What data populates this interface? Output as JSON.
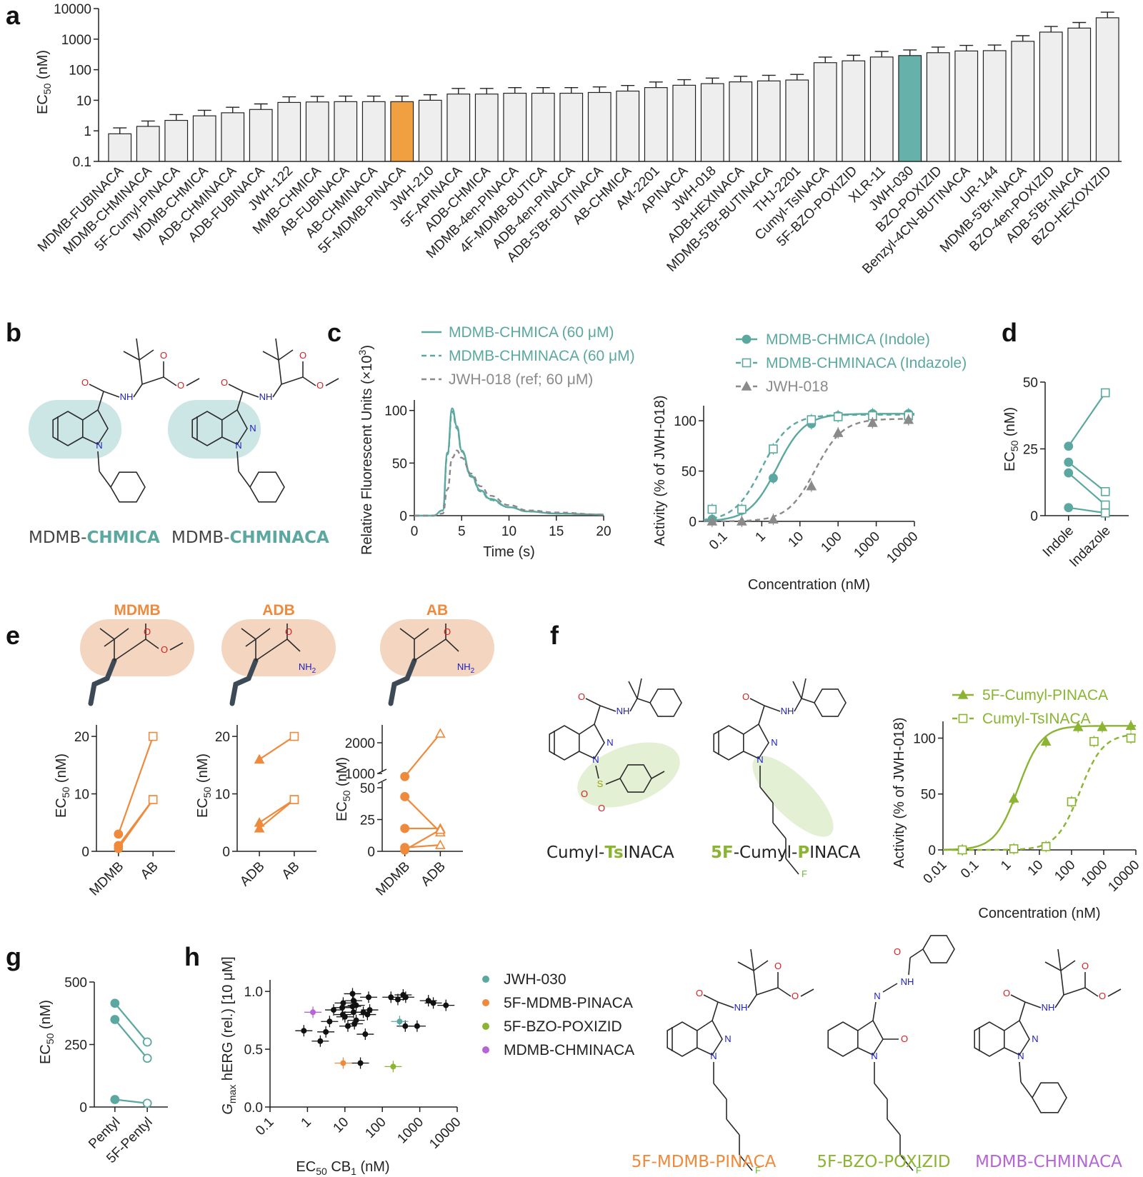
{
  "panels": {
    "a": "a",
    "b": "b",
    "c": "c",
    "d": "d",
    "e": "e",
    "f": "f",
    "g": "g",
    "h": "h"
  },
  "colors": {
    "teal": "#5aa8a0",
    "orange": "#ef8a3c",
    "green": "#8ab432",
    "purple": "#b565d6",
    "gray": "#8a8a8a",
    "bar_fill": "#eeeeee",
    "highlight_orange": "#f0a040",
    "highlight_teal": "#66b2ab",
    "shade_teal": "#bfe0de",
    "shade_peach": "#f4d6c0",
    "shade_green": "#e4f0d4",
    "bond_color": "#2a2a2a",
    "oxygen": "#d42020",
    "nitrogen": "#2020c0",
    "fluorine": "#5fbf2f",
    "sulfur": "#a0a000"
  },
  "text": {
    "a_ylabel": "EC",
    "a_ylabel_sub": "50",
    "a_ylabel_unit": " (nM)",
    "b_name1_prefix": "MDMB-",
    "b_name1_bold": "CHMICA",
    "b_name2_prefix": "MDMB-",
    "b_name2_bold": "CHMINACA",
    "c_trace_legend": [
      "MDMB-CHMICA (60 μM)",
      "MDMB-CHMINACA (60 μM)",
      "JWH-018 (ref; 60 μM)"
    ],
    "c_trace_ylabel": "Relative Fluorescent Units (×10",
    "c_trace_ylabel_sup": "3",
    "c_trace_ylabel_end": ")",
    "c_trace_xlabel": "Time (s)",
    "c_dose_legend": [
      "MDMB-CHMICA (Indole)",
      "MDMB-CHMINACA (Indazole)",
      "JWH-018"
    ],
    "c_dose_ylabel": "Activity (% of JWH-018)",
    "c_dose_xlabel": "Concentration (nM)",
    "d_ylabel": "EC",
    "d_ylabel_sub": "50",
    "d_ylabel_unit": " (nM)",
    "e_groups": [
      "MDMB",
      "ADB",
      "AB"
    ],
    "e_ylabel": "EC",
    "e_ylabel_sub": "50",
    "e_ylabel_unit": " (nM)",
    "f_name1_a": "Cumyl-",
    "f_name1_b": "Ts",
    "f_name1_c": "INACA",
    "f_name2_a": "5F",
    "f_name2_b": "-Cumyl-",
    "f_name2_c": "P",
    "f_name2_d": "INACA",
    "f_legend": [
      "5F-Cumyl-PINACA",
      "Cumyl-TsINACA"
    ],
    "f_ylabel": "Activity (% of JWH-018)",
    "f_xlabel": "Concentration (nM)",
    "g_ylabel": "EC",
    "g_ylabel_sub": "50",
    "g_ylabel_unit": " (nM)",
    "h_ylabel_g": "G",
    "h_ylabel_max": "max",
    "h_ylabel_rest": " hERG (rel.) [10 μM]",
    "h_xlabel": "EC",
    "h_xlabel_sub": "50",
    "h_xlabel_rest": " CB",
    "h_xlabel_sub2": "1",
    "h_xlabel_unit": " (nM)",
    "h_legend": [
      "JWH-030",
      "5F-MDMB-PINACA",
      "5F-BZO-POXIZID",
      "MDMB-CHMINACA"
    ],
    "h_mol_names": [
      "5F-MDMB-PINACA",
      "5F-BZO-POXIZID",
      "MDMB-CHMINACA"
    ],
    "atoms": {
      "O": "O",
      "N": "N",
      "NH": "NH",
      "F": "F",
      "S": "S",
      "NH2": "NH",
      "two": "2"
    }
  },
  "chart_data": [
    {
      "panel": "a",
      "type": "bar",
      "y_scale": "log",
      "ylim": [
        0.1,
        10000
      ],
      "yticks": [
        "0.1",
        "1",
        "10",
        "100",
        "1000",
        "10000"
      ],
      "categories": [
        "MDMB-FUBINACA",
        "MDMB-CHMINACA",
        "5F-Cumyl-PINACA",
        "MDMB-CHMICA",
        "ADB-CHMINACA",
        "ADB-FUBINACA",
        "JWH-122",
        "MMB-CHMICA",
        "AB-FUBINACA",
        "AB-CHMINACA",
        "5F-MDMB-PINACA",
        "JWH-210",
        "5F-APINACA",
        "ADB-CHMICA",
        "MDMB-4en-PINACA",
        "4F-MDMB-BUTICA",
        "ADB-4en-PINACA",
        "ADB-5'Br-BUTINACA",
        "AB-CHMICA",
        "AM-2201",
        "APINACA",
        "JWH-018",
        "ADB-HEXINACA",
        "MDMB-5'Br-BUTINACA",
        "THJ-2201",
        "Cumyl-TsINACA",
        "5F-BZO-POXIZID",
        "XLR-11",
        "JWH-030",
        "BZO-POXIZID",
        "Benzyl-4CN-BUTINACA",
        "UR-144",
        "MDMB-5'Br-INACA",
        "BZO-4en-POXIZID",
        "ADB-5'Br-INACA",
        "BZO-HEXOXIZID"
      ],
      "values": [
        0.8,
        1.4,
        2.2,
        3.1,
        3.9,
        5.0,
        8.5,
        8.8,
        9.0,
        9.0,
        9.0,
        10.0,
        16,
        16,
        17,
        17,
        17,
        18,
        20,
        26,
        31,
        35,
        40,
        43,
        46,
        170,
        195,
        260,
        290,
        360,
        410,
        420,
        850,
        1700,
        2300,
        5000
      ],
      "errors_upper": [
        1.25,
        2.1,
        3.4,
        4.7,
        5.9,
        7.6,
        13,
        13.4,
        13.7,
        13.7,
        13.7,
        15.2,
        24.4,
        24.4,
        25.9,
        25.9,
        25.9,
        27.4,
        30.5,
        39.6,
        47.2,
        53.3,
        60.9,
        65.5,
        70,
        259,
        297,
        396,
        442,
        548,
        624,
        640,
        1295,
        2590,
        3503,
        7616
      ],
      "highlight": {
        "5F-MDMB-PINACA": "orange",
        "JWH-030": "teal"
      }
    },
    {
      "panel": "c-left",
      "type": "line",
      "xlabel": "Time (s)",
      "xlim": [
        0,
        20
      ],
      "ylim": [
        0,
        110
      ],
      "xticks": [
        0,
        5,
        10,
        15,
        20
      ],
      "yticks": [
        0,
        50,
        100
      ],
      "series": [
        {
          "name": "MDMB-CHMICA (60 μM)",
          "x": [
            0,
            2,
            3,
            3.5,
            4,
            4.5,
            5,
            6,
            7,
            8,
            10,
            12,
            15,
            20
          ],
          "y": [
            0,
            0,
            5,
            60,
            102,
            85,
            62,
            38,
            24,
            16,
            8,
            4,
            2,
            1
          ]
        },
        {
          "name": "MDMB-CHMINACA (60 μM)",
          "x": [
            0,
            2,
            3,
            3.5,
            4,
            4.5,
            5,
            6,
            7,
            8,
            10,
            12,
            15,
            20
          ],
          "y": [
            0,
            0,
            5,
            58,
            99,
            83,
            61,
            37,
            23,
            15,
            8,
            4,
            2,
            1
          ]
        },
        {
          "name": "JWH-018 (ref; 60 μM)",
          "x": [
            0,
            2,
            3,
            3.5,
            4,
            4.5,
            5,
            6,
            7,
            8,
            10,
            12,
            15,
            20
          ],
          "y": [
            0,
            0,
            2,
            25,
            55,
            62,
            55,
            40,
            28,
            19,
            10,
            5,
            3,
            1
          ]
        }
      ]
    },
    {
      "panel": "c-right",
      "type": "scatter",
      "x_scale": "log",
      "xlabel": "Concentration (nM)",
      "ylabel": "Activity (% of JWH-018)",
      "xlim": [
        0.03,
        10000
      ],
      "ylim": [
        0,
        115
      ],
      "xticks": [
        "0.1",
        "1",
        "10",
        "100",
        "1000",
        "10000"
      ],
      "yticks": [
        0,
        50,
        100
      ],
      "series": [
        {
          "name": "MDMB-CHMICA (Indole)",
          "x": [
            0.05,
            0.3,
            2,
            20,
            100,
            800,
            7000
          ],
          "y": [
            2,
            11,
            43,
            97,
            105,
            107,
            107
          ],
          "ec50": 2.5,
          "top": 107
        },
        {
          "name": "MDMB-CHMINACA (Indazole)",
          "x": [
            0.05,
            0.3,
            2,
            20,
            100,
            800,
            7000
          ],
          "y": [
            12,
            12,
            72,
            101,
            104,
            105,
            105
          ],
          "ec50": 1.0,
          "top": 106
        },
        {
          "name": "JWH-018",
          "x": [
            0.05,
            0.3,
            2,
            20,
            100,
            800,
            7000
          ],
          "y": [
            0,
            0,
            2,
            35,
            88,
            98,
            101
          ],
          "ec50": 25,
          "top": 102
        }
      ]
    },
    {
      "panel": "d",
      "type": "line",
      "categories": [
        "Indole",
        "Indazole"
      ],
      "ylim": [
        0,
        50
      ],
      "yticks": [
        0,
        25,
        50
      ],
      "pairs": [
        [
          26,
          46
        ],
        [
          20,
          9
        ],
        [
          16,
          4
        ],
        [
          3,
          1
        ]
      ]
    },
    {
      "panel": "e-1",
      "type": "line",
      "categories": [
        "MDMB",
        "AB"
      ],
      "ylim": [
        0,
        22
      ],
      "yticks": [
        0,
        10,
        20
      ],
      "pairs": [
        [
          3,
          20
        ],
        [
          1,
          9
        ],
        [
          0.5,
          9
        ]
      ]
    },
    {
      "panel": "e-2",
      "type": "line",
      "categories": [
        "ADB",
        "AB"
      ],
      "ylim": [
        0,
        22
      ],
      "yticks": [
        0,
        10,
        20
      ],
      "pairs": [
        [
          16,
          20
        ],
        [
          5,
          9
        ],
        [
          4,
          9
        ]
      ]
    },
    {
      "panel": "e-3",
      "type": "line",
      "categories": [
        "MDMB",
        "ADB"
      ],
      "ylim_lower": [
        0,
        50
      ],
      "ylim_upper": [
        1000,
        2000
      ],
      "yticks": [
        "0",
        "25",
        "50",
        "1000",
        "2000"
      ],
      "pairs": [
        [
          900,
          2300
        ],
        [
          43,
          15
        ],
        [
          18,
          18
        ],
        [
          3,
          5
        ],
        [
          1,
          17
        ]
      ]
    },
    {
      "panel": "f",
      "type": "scatter",
      "x_scale": "log",
      "xlabel": "Concentration (nM)",
      "ylabel": "Activity (% of JWH-018)",
      "xlim": [
        0.01,
        10000
      ],
      "ylim": [
        0,
        115
      ],
      "xticks": [
        "0.01",
        "0.1",
        "1",
        "10",
        "100",
        "1000",
        "10000"
      ],
      "yticks": [
        0,
        50,
        100
      ],
      "series": [
        {
          "name": "5F-Cumyl-PINACA",
          "x": [
            0.04,
            1.6,
            16,
            160,
            900,
            7000
          ],
          "y": [
            0,
            46,
            97,
            110,
            110,
            111
          ],
          "ec50": 2.2,
          "top": 111
        },
        {
          "name": "Cumyl-TsINACA",
          "x": [
            0.04,
            1.6,
            16,
            100,
            500,
            7000
          ],
          "y": [
            0,
            1,
            3,
            43,
            97,
            100
          ],
          "ec50": 180,
          "top": 104
        }
      ]
    },
    {
      "panel": "g",
      "type": "line",
      "categories": [
        "Pentyl",
        "5F-Pentyl"
      ],
      "ylim": [
        0,
        500
      ],
      "yticks": [
        0,
        250,
        500
      ],
      "pairs": [
        [
          415,
          260
        ],
        [
          350,
          195
        ],
        [
          30,
          15
        ]
      ]
    },
    {
      "panel": "h",
      "type": "scatter",
      "x_scale": "log",
      "xlim": [
        0.1,
        10000
      ],
      "ylim": [
        0,
        1.1
      ],
      "xticks": [
        "0.1",
        "1",
        "10",
        "100",
        "1000",
        "10000"
      ],
      "yticks": [
        "0.0",
        "0.5",
        "1.0"
      ],
      "series": [
        {
          "name": "JWH-030",
          "points": [
            [
              290,
              0.74
            ]
          ]
        },
        {
          "name": "5F-MDMB-PINACA",
          "points": [
            [
              9,
              0.38
            ]
          ]
        },
        {
          "name": "5F-BZO-POXIZID",
          "points": [
            [
              195,
              0.35
            ]
          ]
        },
        {
          "name": "MDMB-CHMINACA",
          "points": [
            [
              1.4,
              0.82
            ]
          ]
        },
        {
          "name": "other",
          "points": [
            [
              0.8,
              0.66
            ],
            [
              2.2,
              0.57
            ],
            [
              3.1,
              0.65
            ],
            [
              3.9,
              0.74
            ],
            [
              5,
              0.84
            ],
            [
              8.5,
              0.86
            ],
            [
              8.8,
              0.8
            ],
            [
              9,
              0.9
            ],
            [
              10,
              0.78
            ],
            [
              16,
              0.87
            ],
            [
              16,
              0.98
            ],
            [
              17,
              0.82
            ],
            [
              17,
              0.92
            ],
            [
              18,
              0.72
            ],
            [
              20,
              0.88
            ],
            [
              26,
              0.38
            ],
            [
              31,
              0.82
            ],
            [
              35,
              0.63
            ],
            [
              40,
              0.8
            ],
            [
              43,
              0.95
            ],
            [
              46,
              0.84
            ],
            [
              170,
              0.95
            ],
            [
              260,
              0.93
            ],
            [
              360,
              0.97
            ],
            [
              410,
              0.7
            ],
            [
              420,
              0.95
            ],
            [
              850,
              0.7
            ],
            [
              1700,
              0.92
            ],
            [
              2300,
              0.9
            ],
            [
              5000,
              0.88
            ],
            [
              20,
              0.75
            ],
            [
              12,
              0.7
            ]
          ]
        }
      ]
    }
  ]
}
